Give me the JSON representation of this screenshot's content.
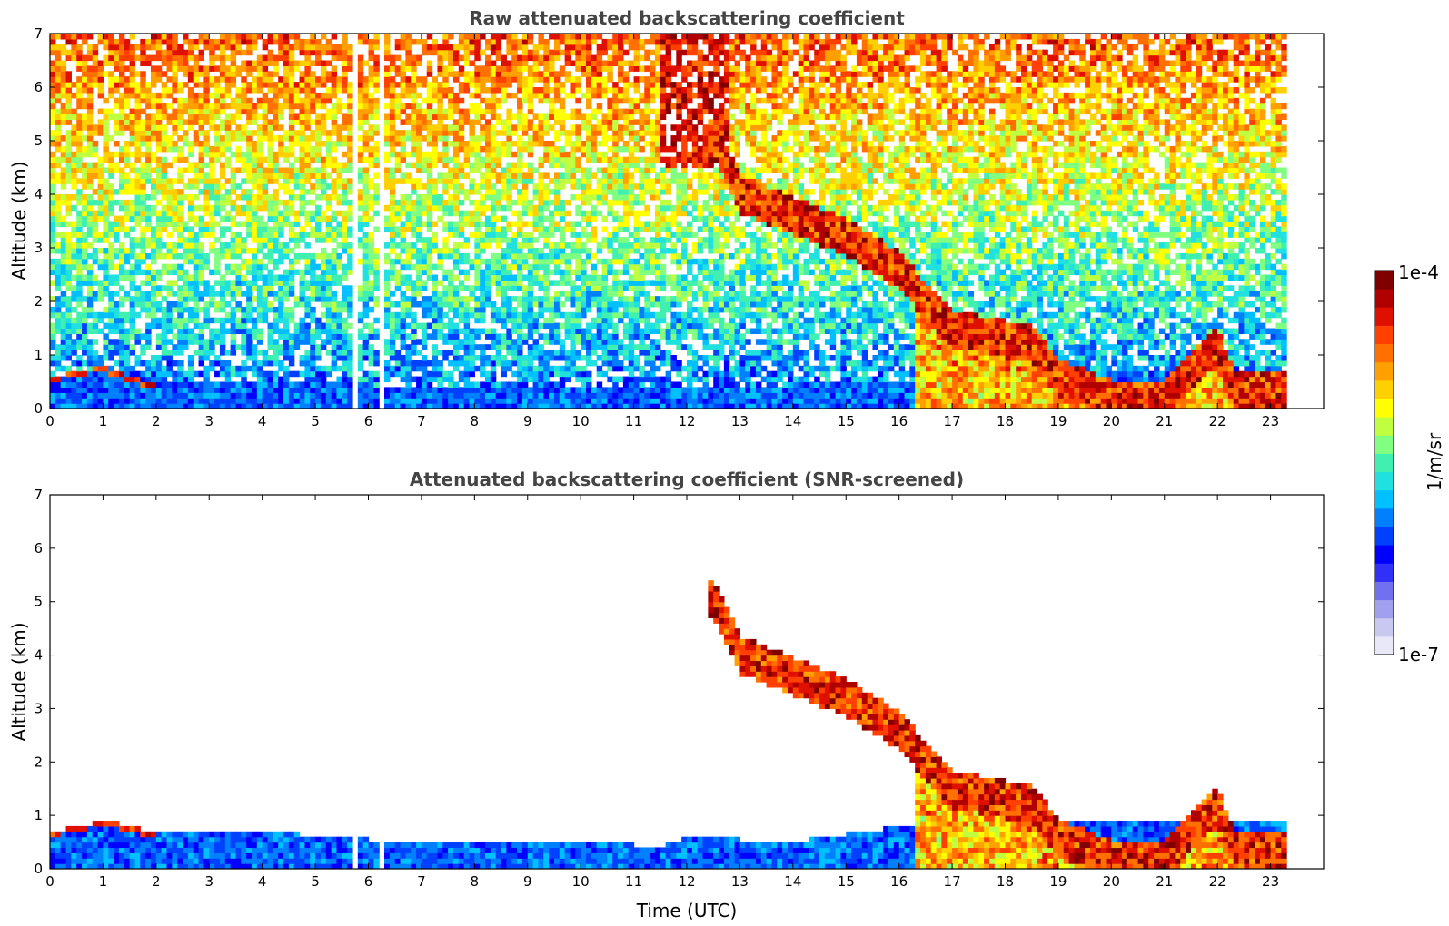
{
  "chart_data": [
    {
      "type": "heatmap",
      "title": "Raw attenuated backscattering coefficient",
      "xlabel": "",
      "ylabel": "Altitude (km)",
      "xlim": [
        0,
        24
      ],
      "ylim": [
        0,
        7
      ],
      "x_ticks": [
        "0",
        "1",
        "2",
        "3",
        "4",
        "5",
        "6",
        "7",
        "8",
        "9",
        "10",
        "11",
        "12",
        "13",
        "14",
        "15",
        "16",
        "17",
        "18",
        "19",
        "20",
        "21",
        "22",
        "23"
      ],
      "y_ticks": [
        "0",
        "1",
        "2",
        "3",
        "4",
        "5",
        "6",
        "7"
      ],
      "data_end_time": 23.3,
      "missing_intervals": [
        [
          5.65,
          5.75
        ],
        [
          6.2,
          6.3
        ]
      ],
      "boundary_layer_top_km": [
        [
          0,
          0.6
        ],
        [
          1,
          0.8
        ],
        [
          1.5,
          0.6
        ],
        [
          2,
          0.45
        ],
        [
          4,
          0.5
        ],
        [
          5,
          0.55
        ],
        [
          6,
          0.45
        ],
        [
          8,
          0.4
        ],
        [
          10,
          0.42
        ],
        [
          12,
          0.45
        ],
        [
          14,
          0.45
        ],
        [
          16,
          0.5
        ],
        [
          16.5,
          0.6
        ]
      ],
      "elevated_layer_km": [
        [
          12.5,
          5.0
        ],
        [
          13.0,
          4.0
        ],
        [
          14.0,
          3.6
        ],
        [
          15.0,
          3.2
        ],
        [
          16.0,
          2.6
        ],
        [
          16.5,
          2.0
        ],
        [
          17.0,
          1.5
        ],
        [
          18.0,
          1.3
        ],
        [
          18.5,
          1.2
        ],
        [
          19.0,
          0.6
        ],
        [
          20.0,
          0.2
        ],
        [
          21.0,
          0.2
        ],
        [
          22.0,
          1.2
        ],
        [
          22.3,
          0.4
        ],
        [
          23.3,
          0.3
        ]
      ],
      "high_signal_region": [
        11.5,
        12.8,
        4.5,
        7.0
      ]
    },
    {
      "type": "heatmap",
      "title": "Attenuated backscattering coefficient (SNR-screened)",
      "xlabel": "Time (UTC)",
      "ylabel": "Altitude (km)",
      "xlim": [
        0,
        24
      ],
      "ylim": [
        0,
        7
      ],
      "x_ticks": [
        "0",
        "1",
        "2",
        "3",
        "4",
        "5",
        "6",
        "7",
        "8",
        "9",
        "10",
        "11",
        "12",
        "13",
        "14",
        "15",
        "16",
        "17",
        "18",
        "19",
        "20",
        "21",
        "22",
        "23"
      ],
      "y_ticks": [
        "0",
        "1",
        "2",
        "3",
        "4",
        "5",
        "6",
        "7"
      ],
      "data_end_time": 23.3,
      "missing_intervals": [
        [
          5.65,
          5.75
        ],
        [
          6.2,
          6.3
        ]
      ],
      "boundary_layer_top_km": [
        [
          0,
          0.7
        ],
        [
          1,
          0.9
        ],
        [
          1.5,
          0.8
        ],
        [
          2,
          0.65
        ],
        [
          4,
          0.75
        ],
        [
          5,
          0.6
        ],
        [
          6,
          0.55
        ],
        [
          8,
          0.55
        ],
        [
          10,
          0.55
        ],
        [
          11.5,
          0.4
        ],
        [
          12,
          0.6
        ],
        [
          14,
          0.5
        ],
        [
          16,
          0.8
        ],
        [
          16.5,
          0.9
        ]
      ],
      "elevated_layer_km": [
        [
          12.5,
          5.0
        ],
        [
          13.0,
          4.0
        ],
        [
          14.0,
          3.6
        ],
        [
          15.0,
          3.2
        ],
        [
          16.0,
          2.6
        ],
        [
          16.5,
          2.0
        ],
        [
          17.0,
          1.5
        ],
        [
          18.0,
          1.3
        ],
        [
          18.5,
          1.2
        ],
        [
          19.0,
          0.6
        ],
        [
          20.0,
          0.2
        ],
        [
          21.0,
          0.2
        ],
        [
          22.0,
          1.2
        ],
        [
          22.3,
          0.4
        ],
        [
          23.3,
          0.3
        ]
      ]
    }
  ],
  "colorbar": {
    "label": "1/m/sr",
    "max_label": "1e-4",
    "min_label": "1e-7",
    "colors": [
      "#e8e8f8",
      "#c8c8f0",
      "#a0a0ee",
      "#7070f0",
      "#3030f8",
      "#0000ff",
      "#0040ff",
      "#0080ff",
      "#00c0ff",
      "#20e0e0",
      "#40f0b0",
      "#80ff80",
      "#c0ff40",
      "#ffff00",
      "#ffd000",
      "#ffa000",
      "#ff7000",
      "#ff4000",
      "#e01000",
      "#b00000",
      "#800000"
    ]
  }
}
